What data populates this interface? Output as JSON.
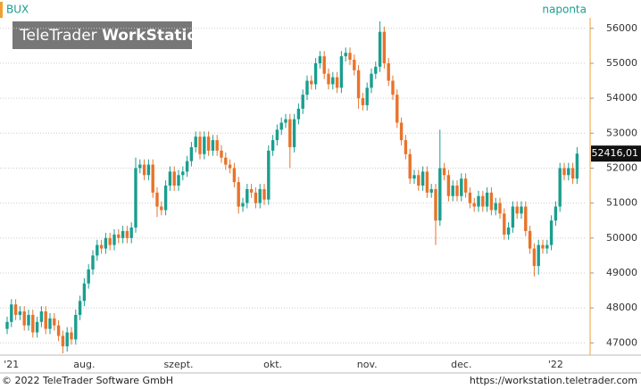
{
  "chart_data": {
    "type": "candlestick",
    "title": "BUX",
    "frequency": "naponta",
    "categories": [
      null,
      "'21",
      null,
      null,
      null,
      null,
      null,
      null,
      null,
      null,
      null,
      null,
      null,
      null,
      null,
      null,
      null,
      null,
      "aug.",
      null,
      null,
      null,
      null,
      null,
      null,
      null,
      null,
      null,
      null,
      null,
      null,
      null,
      null,
      null,
      null,
      null,
      null,
      null,
      null,
      null,
      "szept.",
      null,
      null,
      null,
      null,
      null,
      null,
      null,
      null,
      null,
      null,
      null,
      null,
      null,
      null,
      null,
      null,
      null,
      null,
      null,
      null,
      null,
      "okt.",
      null,
      null,
      null,
      null,
      null,
      null,
      null,
      null,
      null,
      null,
      null,
      null,
      null,
      null,
      null,
      null,
      null,
      null,
      null,
      null,
      null,
      "nov.",
      null,
      null,
      null,
      null,
      null,
      null,
      null,
      null,
      null,
      null,
      null,
      null,
      null,
      null,
      null,
      null,
      null,
      null,
      null,
      null,
      null,
      "dec.",
      null,
      null,
      null,
      null,
      null,
      null,
      null,
      null,
      null,
      null,
      null,
      null,
      null,
      null,
      null,
      null,
      null,
      null,
      null,
      null,
      null,
      "'22",
      null,
      null,
      null,
      null,
      null
    ],
    "open": [
      47400,
      47600,
      48100,
      47800,
      47900,
      47500,
      47800,
      47300,
      47600,
      47900,
      47400,
      47700,
      47500,
      47200,
      46900,
      47300,
      47100,
      47800,
      48200,
      48700,
      49100,
      49500,
      49800,
      49700,
      50000,
      49800,
      50100,
      50000,
      50200,
      50000,
      50300,
      52000,
      52100,
      51800,
      52100,
      51300,
      50900,
      50800,
      51500,
      51900,
      51500,
      51800,
      51900,
      52200,
      52600,
      52900,
      52400,
      52900,
      52500,
      52800,
      52500,
      52300,
      52100,
      52000,
      51600,
      50900,
      51000,
      51400,
      51300,
      51000,
      51400,
      51100,
      52500,
      52800,
      53100,
      53300,
      53400,
      52600,
      53400,
      53700,
      54100,
      54500,
      54400,
      55000,
      55200,
      54700,
      54400,
      54600,
      54300,
      55200,
      55300,
      55100,
      54800,
      54000,
      53800,
      54300,
      54700,
      54900,
      55900,
      55000,
      54500,
      54100,
      53300,
      52800,
      52400,
      51700,
      51800,
      51500,
      51900,
      51300,
      51400,
      50500,
      52000,
      51800,
      51200,
      51500,
      51200,
      51700,
      51300,
      51000,
      50900,
      51200,
      50900,
      51300,
      50800,
      51000,
      50700,
      50100,
      50300,
      50900,
      50700,
      50900,
      50200,
      49700,
      49200,
      49800,
      49700,
      49800,
      50500,
      50900,
      52000,
      51800,
      52000,
      51700
    ],
    "high": [
      47750,
      48250,
      48250,
      48050,
      48050,
      47950,
      47950,
      47750,
      48050,
      48050,
      47850,
      47850,
      47650,
      47350,
      47450,
      47450,
      47950,
      48350,
      48850,
      49250,
      49650,
      49950,
      49950,
      50150,
      50150,
      50250,
      50250,
      50350,
      50350,
      50450,
      52300,
      52250,
      52250,
      52250,
      52250,
      51450,
      51050,
      51650,
      52050,
      52050,
      51950,
      52050,
      52350,
      52750,
      53050,
      53050,
      53050,
      53050,
      52950,
      52950,
      52650,
      52450,
      52250,
      52150,
      51750,
      51150,
      51550,
      51550,
      51450,
      51550,
      51550,
      52650,
      52950,
      53250,
      53450,
      53550,
      53550,
      53550,
      53850,
      54250,
      54650,
      54650,
      55150,
      55350,
      55350,
      54850,
      54750,
      54750,
      55350,
      55450,
      55450,
      55250,
      54950,
      54150,
      54450,
      54850,
      55050,
      56200,
      56050,
      55150,
      54650,
      54250,
      53450,
      52950,
      52550,
      51950,
      51950,
      52050,
      52050,
      51550,
      51550,
      53100,
      52150,
      51950,
      51650,
      51650,
      51850,
      51850,
      51450,
      51150,
      51350,
      51350,
      51450,
      51450,
      51150,
      51150,
      50850,
      50450,
      51050,
      51050,
      51050,
      51050,
      50350,
      49850,
      49950,
      49950,
      49950,
      50650,
      51050,
      52150,
      52150,
      52150,
      52150,
      52600
    ],
    "low": [
      47250,
      47450,
      47650,
      47650,
      47350,
      47350,
      47150,
      47150,
      47450,
      47250,
      47250,
      47350,
      47050,
      46700,
      46750,
      46950,
      46950,
      47650,
      48050,
      48550,
      48950,
      49350,
      49550,
      49550,
      49650,
      49650,
      49850,
      49850,
      49850,
      49850,
      50150,
      51850,
      51650,
      51650,
      51150,
      50600,
      50650,
      50650,
      51350,
      51350,
      51350,
      51650,
      51750,
      52050,
      52450,
      52250,
      52250,
      52350,
      52350,
      52350,
      52150,
      51950,
      51850,
      51450,
      50700,
      50750,
      50850,
      51150,
      50850,
      50850,
      50950,
      50950,
      52350,
      52650,
      52950,
      53150,
      52000,
      52450,
      53250,
      53550,
      53950,
      54250,
      54250,
      54850,
      54550,
      54250,
      54250,
      54150,
      54150,
      55050,
      54950,
      54650,
      53700,
      53650,
      53650,
      54150,
      54550,
      54750,
      54850,
      54350,
      53950,
      53150,
      52650,
      52250,
      51550,
      51550,
      51350,
      51350,
      51150,
      51150,
      49800,
      50350,
      51650,
      51050,
      51050,
      51050,
      51050,
      51150,
      50850,
      50750,
      50750,
      50750,
      50750,
      50650,
      50650,
      50550,
      49950,
      49950,
      50150,
      50550,
      50550,
      50050,
      49550,
      48900,
      48950,
      49550,
      49550,
      49650,
      50350,
      50750,
      51650,
      51650,
      51550,
      51550
    ],
    "close": [
      47600,
      48100,
      47800,
      47900,
      47500,
      47800,
      47300,
      47600,
      47900,
      47400,
      47700,
      47500,
      47200,
      46900,
      47300,
      47100,
      47800,
      48200,
      48700,
      49100,
      49500,
      49800,
      49700,
      50000,
      49800,
      50100,
      50000,
      50200,
      50000,
      50300,
      52000,
      52100,
      51800,
      52100,
      51300,
      50900,
      50800,
      51500,
      51900,
      51500,
      51800,
      51900,
      52200,
      52600,
      52900,
      52400,
      52900,
      52500,
      52800,
      52500,
      52300,
      52100,
      52000,
      51600,
      50900,
      51000,
      51400,
      51300,
      51000,
      51400,
      51100,
      52500,
      52800,
      53100,
      53300,
      53400,
      52600,
      53400,
      53700,
      54100,
      54500,
      54400,
      55000,
      55200,
      54700,
      54400,
      54600,
      54300,
      55200,
      55300,
      55100,
      54800,
      54000,
      53800,
      54300,
      54700,
      54900,
      55900,
      55000,
      54500,
      54100,
      53300,
      52800,
      52400,
      51700,
      51800,
      51500,
      51900,
      51300,
      51400,
      50500,
      52000,
      51800,
      51200,
      51500,
      51200,
      51700,
      51300,
      51000,
      50900,
      51200,
      50900,
      51300,
      50800,
      51000,
      50700,
      50100,
      50300,
      50900,
      50700,
      50900,
      50200,
      49700,
      49200,
      49800,
      49700,
      49800,
      50500,
      50900,
      52000,
      51800,
      52000,
      51700,
      52416.01
    ],
    "last_label": "52416,01",
    "up_color": "#1a9e8f",
    "down_color": "#e8732a",
    "ylim": [
      46650,
      56300
    ],
    "yticks": [
      47000,
      48000,
      49000,
      50000,
      51000,
      52000,
      53000,
      54000,
      55000,
      56000
    ],
    "grid": true
  },
  "logo": [
    "TeleTrader",
    "WorkStation"
  ],
  "footer": {
    "copyright": "© 2022 TeleTrader Software GmbH",
    "url": "https://workstation.teletrader.com"
  }
}
